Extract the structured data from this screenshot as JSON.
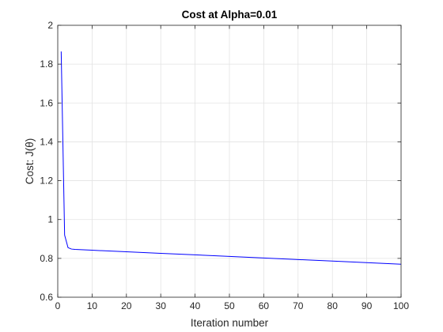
{
  "chart_data": {
    "type": "line",
    "title": "Cost at Alpha=0.01",
    "xlabel": "Iteration number",
    "ylabel": "Cost: J(θ)",
    "xlim": [
      0,
      100
    ],
    "ylim": [
      0.6,
      2
    ],
    "xticks": [
      0,
      10,
      20,
      30,
      40,
      50,
      60,
      70,
      80,
      90,
      100
    ],
    "yticks": [
      0.6,
      0.8,
      1,
      1.2,
      1.4,
      1.6,
      1.8,
      2
    ],
    "grid": true,
    "colors": {
      "line": "#0000ff",
      "grid": "#e3e3e3",
      "axis": "#262626"
    },
    "series": [
      {
        "x": [
          1,
          2,
          3,
          4,
          5,
          10,
          20,
          30,
          40,
          50,
          60,
          70,
          80,
          90,
          100
        ],
        "y": [
          1.865,
          0.92,
          0.855,
          0.848,
          0.846,
          0.842,
          0.834,
          0.826,
          0.818,
          0.81,
          0.802,
          0.794,
          0.786,
          0.778,
          0.77
        ]
      }
    ]
  }
}
